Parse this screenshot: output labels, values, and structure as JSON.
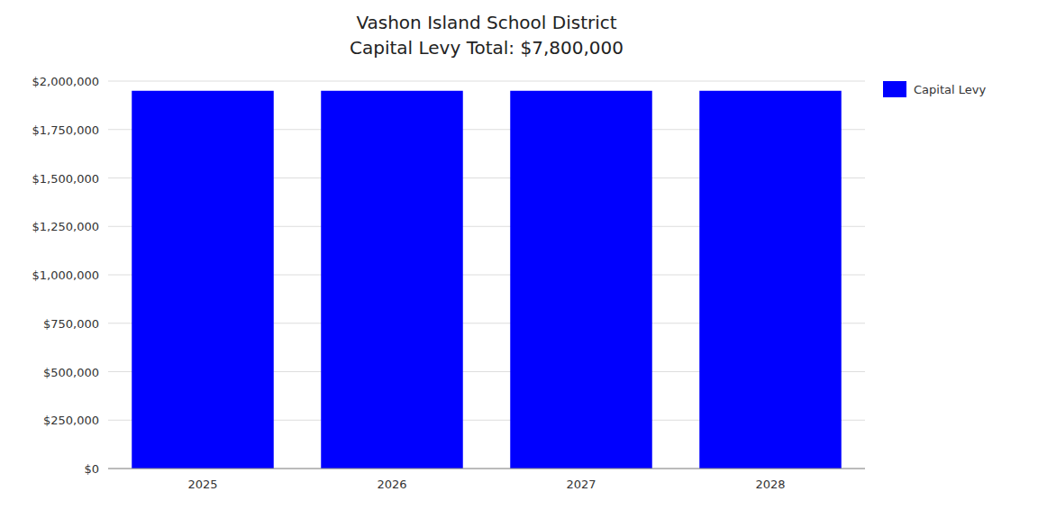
{
  "chart_data": {
    "type": "bar",
    "title": "Vashon Island School District",
    "subtitle": "Capital Levy Total: $7,800,000",
    "categories": [
      "2025",
      "2026",
      "2027",
      "2028"
    ],
    "series": [
      {
        "name": "Capital Levy",
        "color": "#0000FF",
        "values": [
          1950000,
          1950000,
          1950000,
          1950000
        ]
      }
    ],
    "ylim": [
      0,
      2000000
    ],
    "yticks": [
      {
        "value": 0,
        "label": "$0"
      },
      {
        "value": 250000,
        "label": "$250,000"
      },
      {
        "value": 500000,
        "label": "$500,000"
      },
      {
        "value": 750000,
        "label": "$750,000"
      },
      {
        "value": 1000000,
        "label": "$1,000,000"
      },
      {
        "value": 1250000,
        "label": "$1,250,000"
      },
      {
        "value": 1500000,
        "label": "$1,500,000"
      },
      {
        "value": 1750000,
        "label": "$1,750,000"
      },
      {
        "value": 2000000,
        "label": "$2,000,000"
      }
    ],
    "grid": true,
    "legend": "right"
  }
}
